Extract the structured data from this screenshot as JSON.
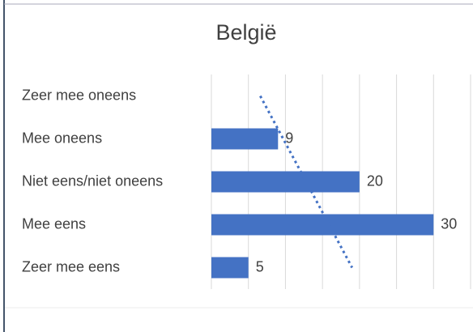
{
  "chart_data": {
    "type": "bar",
    "orientation": "horizontal",
    "title": "België",
    "categories": [
      "Zeer mee oneens",
      "Mee oneens",
      "Niet eens/niet oneens",
      "Mee eens",
      "Zeer mee eens"
    ],
    "values": [
      0,
      9,
      20,
      30,
      5
    ],
    "color": "#4472c4",
    "xlim": [
      0,
      35
    ],
    "xticks": [
      0,
      5,
      10,
      15,
      20,
      25,
      30,
      35
    ],
    "grid": true,
    "trendline": "linear"
  }
}
